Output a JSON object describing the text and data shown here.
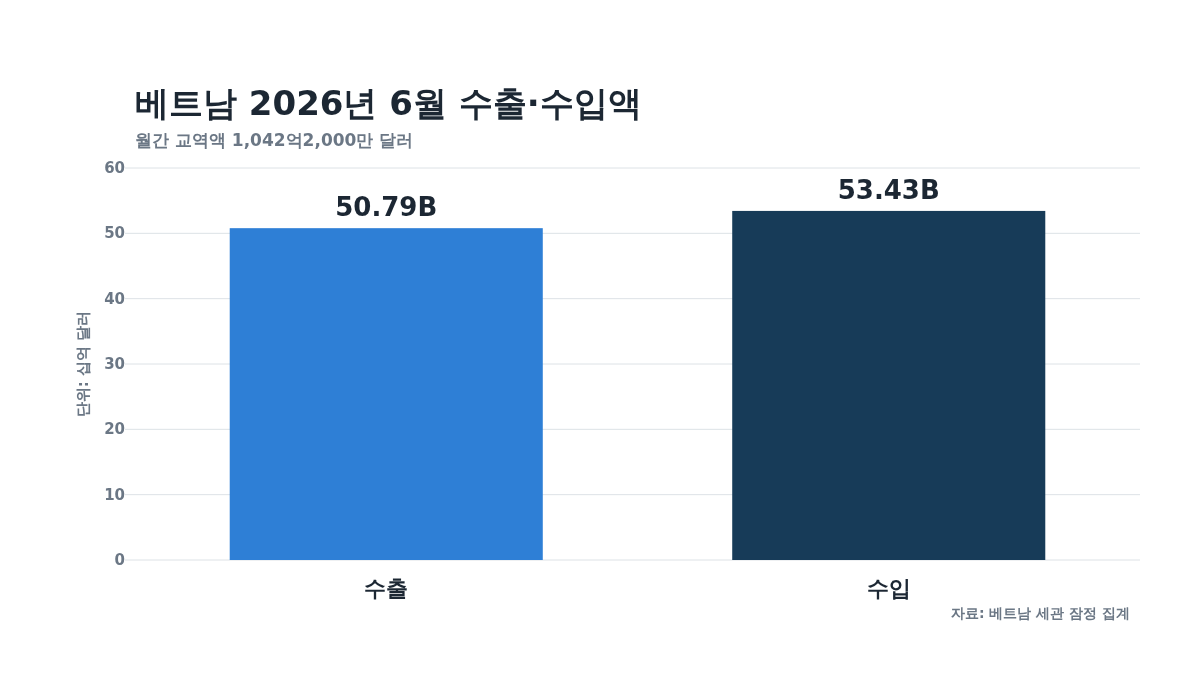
{
  "chart_data": {
    "type": "bar",
    "title": "베트남 2026년 6월 수출·수입액",
    "subtitle": "월간 교역액 1,042억2,000만 달러",
    "ylabel": "단위: 십억 달러",
    "categories": [
      "수출",
      "수입"
    ],
    "values": [
      50.79,
      53.43
    ],
    "colors": [
      "#2e7fd6",
      "#173b58"
    ],
    "value_labels": [
      "50.79B",
      "53.43B"
    ],
    "ylim": [
      0,
      60
    ],
    "yticks": [
      0,
      10,
      20,
      30,
      40,
      50,
      60
    ],
    "grid": "y",
    "annotations": [
      "자료: 베트남 세관 잠정 집계"
    ]
  }
}
